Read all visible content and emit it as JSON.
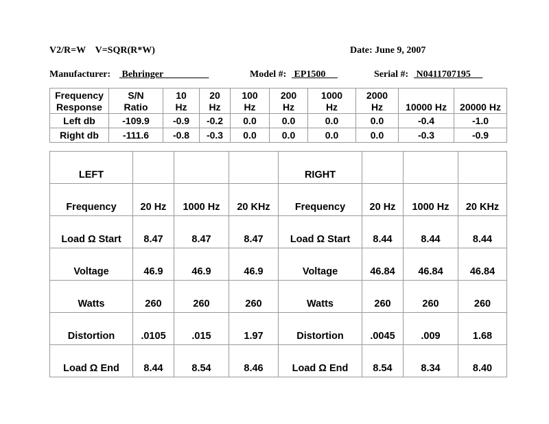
{
  "header": {
    "formula": "V2/R=W    V=SQR(R*W)",
    "date": "Date: June 9, 2007",
    "manufacturer_label": "Manufacturer:",
    "manufacturer_value": " Behringer                   ",
    "model_label": "Model #:",
    "model_value": " EP1500     ",
    "serial_label": "Serial #:",
    "serial_value": " N0411707195     "
  },
  "freq_table": {
    "headers": [
      [
        "Frequency",
        "Response"
      ],
      [
        "S/N",
        "Ratio"
      ],
      [
        "10",
        "Hz"
      ],
      [
        "20",
        "Hz"
      ],
      [
        "100",
        "Hz"
      ],
      [
        "200",
        "Hz"
      ],
      [
        "1000",
        "Hz"
      ],
      [
        "2000",
        "Hz"
      ],
      [
        "",
        "10000 Hz"
      ],
      [
        "",
        "20000 Hz"
      ]
    ],
    "rows": [
      [
        "Left db",
        "-109.9",
        "-0.9",
        "-0.2",
        "0.0",
        "0.0",
        "0.0",
        "0.0",
        "-0.4",
        "-1.0"
      ],
      [
        "Right db",
        "-111.6",
        "-0.8",
        "-0.3",
        "0.0",
        "0.0",
        "0.0",
        "0.0",
        "-0.3",
        "-0.9"
      ]
    ]
  },
  "power_table": {
    "rows": [
      [
        "LEFT",
        "",
        "",
        "",
        "RIGHT",
        "",
        "",
        ""
      ],
      [
        "Frequency",
        "20 Hz",
        "1000 Hz",
        "20 KHz",
        "Frequency",
        "20 Hz",
        "1000 Hz",
        "20 KHz"
      ],
      [
        "Load Ω Start",
        "8.47",
        "8.47",
        "8.47",
        "Load Ω Start",
        "8.44",
        "8.44",
        "8.44"
      ],
      [
        "Voltage",
        "46.9",
        "46.9",
        "46.9",
        "Voltage",
        "46.84",
        "46.84",
        "46.84"
      ],
      [
        "Watts",
        "260",
        "260",
        "260",
        "Watts",
        "260",
        "260",
        "260"
      ],
      [
        "Distortion",
        ".0105",
        ".015",
        "1.97",
        "Distortion",
        ".0045",
        ".009",
        "1.68"
      ],
      [
        "Load Ω End",
        "8.44",
        "8.54",
        "8.46",
        "Load Ω End",
        "8.54",
        "8.34",
        "8.40"
      ]
    ]
  }
}
